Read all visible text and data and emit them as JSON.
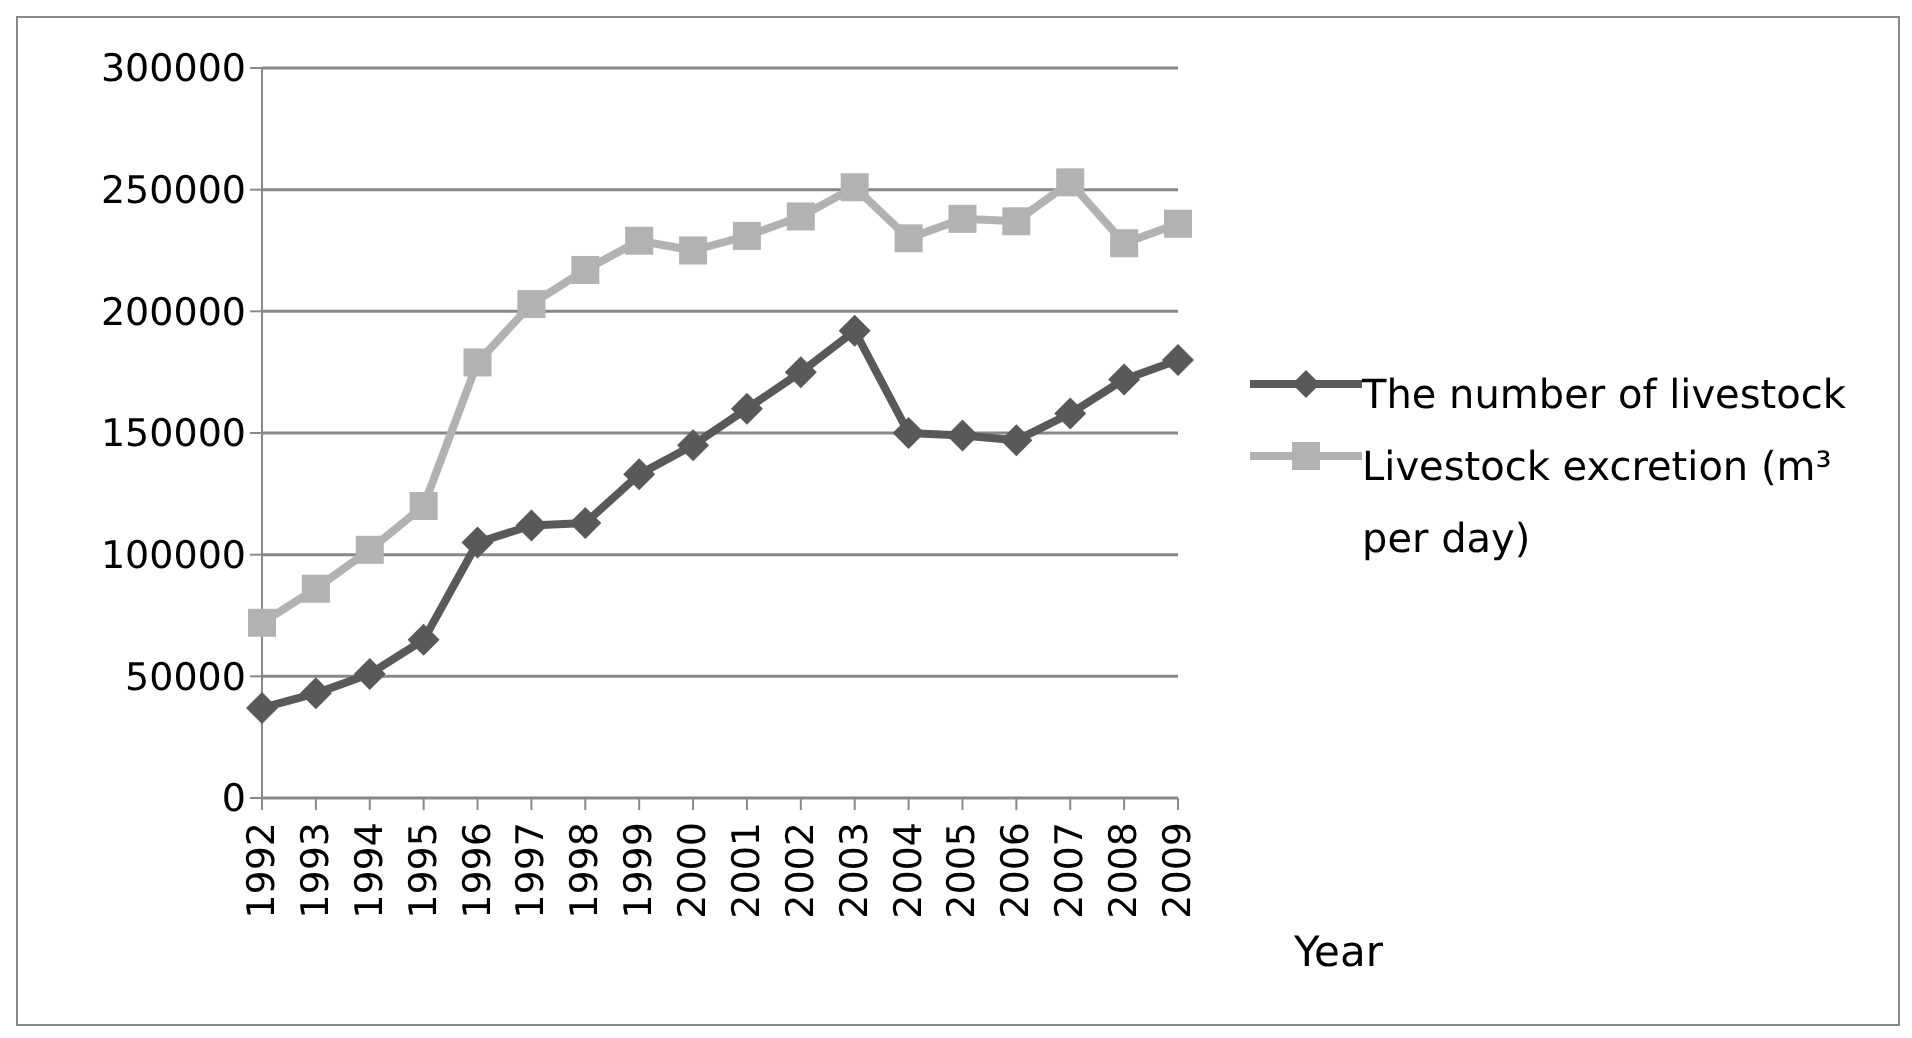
{
  "chart_data": {
    "type": "line",
    "xlabel": "Year",
    "categories": [
      "1992",
      "1993",
      "1994",
      "1995",
      "1996",
      "1997",
      "1998",
      "1999",
      "2000",
      "2001",
      "2002",
      "2003",
      "2004",
      "2005",
      "2006",
      "2007",
      "2008",
      "2009"
    ],
    "series": [
      {
        "name": "The number of livestock",
        "color": "#595959",
        "marker": "diamond",
        "values": [
          37000,
          43000,
          51000,
          65000,
          105000,
          112000,
          113000,
          133000,
          145000,
          160000,
          175000,
          192000,
          150000,
          149000,
          147000,
          158000,
          172000,
          180000
        ]
      },
      {
        "name": "Livestock excretion (m³ per day)",
        "color": "#b2b2b2",
        "marker": "square",
        "values": [
          72000,
          86000,
          102000,
          120000,
          179000,
          203000,
          217000,
          229000,
          225000,
          231000,
          239000,
          251000,
          230000,
          238000,
          237000,
          253000,
          228000,
          236000
        ]
      }
    ],
    "ylim": [
      0,
      300000
    ],
    "yticks": [
      0,
      50000,
      100000,
      150000,
      200000,
      250000,
      300000
    ],
    "grid": "y",
    "legend": "right"
  }
}
